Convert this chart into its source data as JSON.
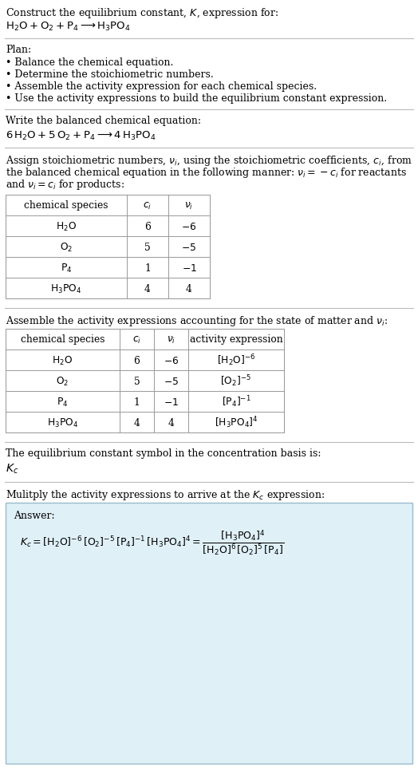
{
  "bg_color": "#ffffff",
  "text_color": "#000000",
  "table_border_color": "#999999",
  "answer_box_color": "#dff0f7",
  "answer_box_border": "#99bbcc",
  "divider_color": "#bbbbbb",
  "font_size": 9.0,
  "table_font_size": 8.8,
  "title_line1": "Construct the equilibrium constant, $K$, expression for:",
  "plan_header": "Plan:",
  "plan_bullets": [
    "• Balance the chemical equation.",
    "• Determine the stoichiometric numbers.",
    "• Assemble the activity expression for each chemical species.",
    "• Use the activity expressions to build the equilibrium constant expression."
  ],
  "balanced_header": "Write the balanced chemical equation:",
  "stoich_para": [
    "Assign stoichiometric numbers, $\\nu_i$, using the stoichiometric coefficients, $c_i$, from",
    "the balanced chemical equation in the following manner: $\\nu_i = -c_i$ for reactants",
    "and $\\nu_i = c_i$ for products:"
  ],
  "table1_headers": [
    "chemical species",
    "$c_i$",
    "$\\nu_i$"
  ],
  "table1_rows": [
    [
      "$\\mathrm{H_2O}$",
      "6",
      "$-6$"
    ],
    [
      "$\\mathrm{O_2}$",
      "5",
      "$-5$"
    ],
    [
      "$\\mathrm{P_4}$",
      "1",
      "$-1$"
    ],
    [
      "$\\mathrm{H_3PO_4}$",
      "4",
      "4"
    ]
  ],
  "activity_header": "Assemble the activity expressions accounting for the state of matter and $\\nu_i$:",
  "table2_headers": [
    "chemical species",
    "$c_i$",
    "$\\nu_i$",
    "activity expression"
  ],
  "table2_rows": [
    [
      "$\\mathrm{H_2O}$",
      "6",
      "$-6$",
      "$[\\mathrm{H_2O}]^{-6}$"
    ],
    [
      "$\\mathrm{O_2}$",
      "5",
      "$-5$",
      "$[\\mathrm{O_2}]^{-5}$"
    ],
    [
      "$\\mathrm{P_4}$",
      "1",
      "$-1$",
      "$[\\mathrm{P_4}]^{-1}$"
    ],
    [
      "$\\mathrm{H_3PO_4}$",
      "4",
      "4",
      "$[\\mathrm{H_3PO_4}]^{4}$"
    ]
  ],
  "kc_line1": "The equilibrium constant symbol in the concentration basis is:",
  "multiply_line": "Mulitply the activity expressions to arrive at the $K_c$ expression:",
  "answer_label": "Answer:"
}
